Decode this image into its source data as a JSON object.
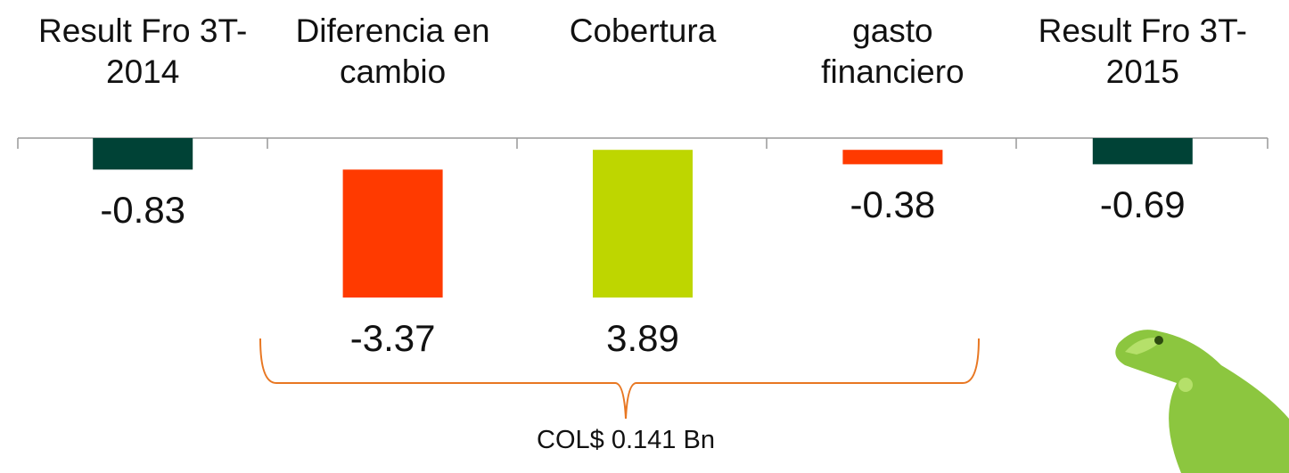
{
  "chart_data": {
    "type": "waterfall",
    "categories": [
      "Result Fro 3T-\n2014",
      "Diferencia en\ncambio",
      "Cobertura",
      "gasto\nfinanciero",
      "Result Fro 3T-\n2015"
    ],
    "values": [
      -0.83,
      -3.37,
      3.89,
      -0.38,
      -0.69
    ],
    "total": [
      true,
      false,
      false,
      false,
      true
    ],
    "colors": [
      "#004236",
      "#ff3a00",
      "#bed600",
      "#ff3a00",
      "#004236"
    ],
    "ylim": [
      -4.2,
      0
    ],
    "annotation": "COL$ 0.141 Bn"
  }
}
